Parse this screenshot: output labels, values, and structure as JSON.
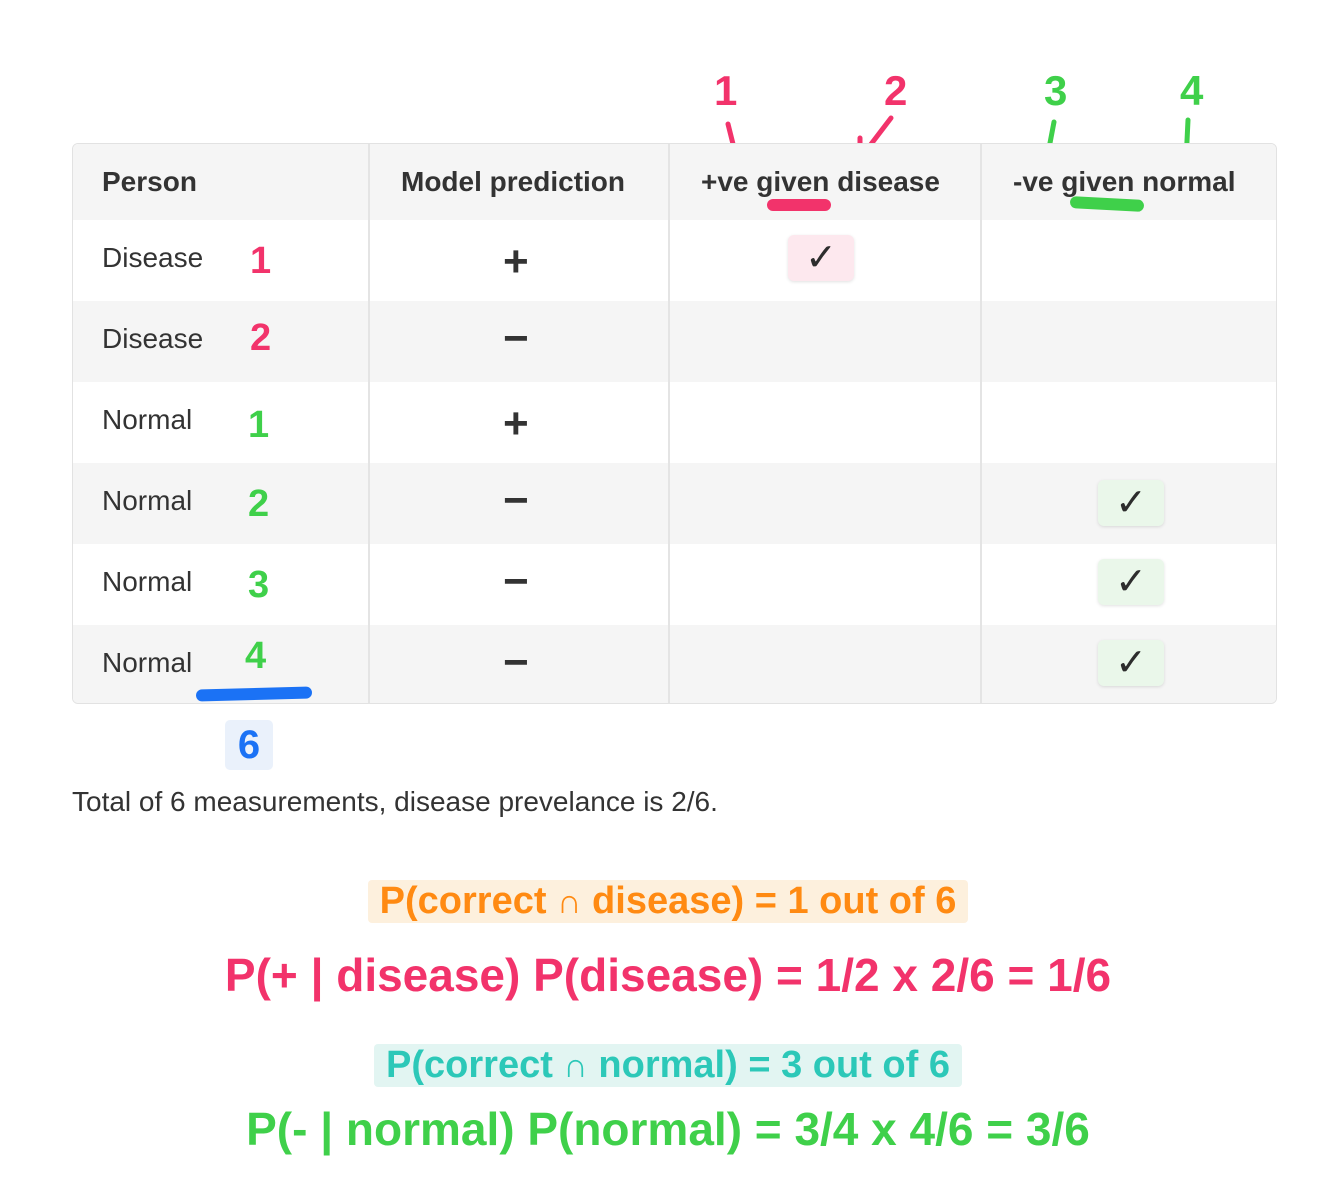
{
  "annotations": {
    "header_numbers": [
      "1",
      "2",
      "3",
      "4"
    ],
    "total_count": "6"
  },
  "table": {
    "headers": [
      "Person",
      "Model prediction",
      "+ve given disease",
      "-ve given normal"
    ],
    "header_parts": {
      "col3_prefix": "+ve ",
      "col3_given": "given",
      "col3_suffix": " disease",
      "col4_prefix": "-ve ",
      "col4_given": "given",
      "col4_suffix": " normal"
    },
    "rows": [
      {
        "person": "Disease",
        "num": "1",
        "prediction": "+",
        "pos_given_disease": "✓",
        "neg_given_normal": ""
      },
      {
        "person": "Disease",
        "num": "2",
        "prediction": "−",
        "pos_given_disease": "",
        "neg_given_normal": ""
      },
      {
        "person": "Normal",
        "num": "1",
        "prediction": "+",
        "pos_given_disease": "",
        "neg_given_normal": ""
      },
      {
        "person": "Normal",
        "num": "2",
        "prediction": "−",
        "pos_given_disease": "",
        "neg_given_normal": "✓"
      },
      {
        "person": "Normal",
        "num": "3",
        "prediction": "−",
        "pos_given_disease": "",
        "neg_given_normal": "✓"
      },
      {
        "person": "Normal",
        "num": "4",
        "prediction": "−",
        "pos_given_disease": "",
        "neg_given_normal": "✓"
      }
    ]
  },
  "caption": "Total of 6 measurements, disease prevelance is 2/6.",
  "equations": {
    "correct_disease": {
      "left": "P(correct ",
      "cap": "∩",
      "right": " disease) = 1 out of 6"
    },
    "pos_disease": "P(+ | disease) P(disease) = 1/2 x 2/6 = 1/6",
    "correct_normal": {
      "left": "P(correct ",
      "cap": "∩",
      "right": " normal) = 3 out of 6"
    },
    "neg_normal": "P(- | normal) P(normal) = 3/4 x 4/6 = 3/6"
  },
  "colors": {
    "pink": "#f2336b",
    "green": "#3fd04a",
    "blue": "#1b72f5",
    "orange": "#ff8a12",
    "teal": "#2cc8b8"
  }
}
